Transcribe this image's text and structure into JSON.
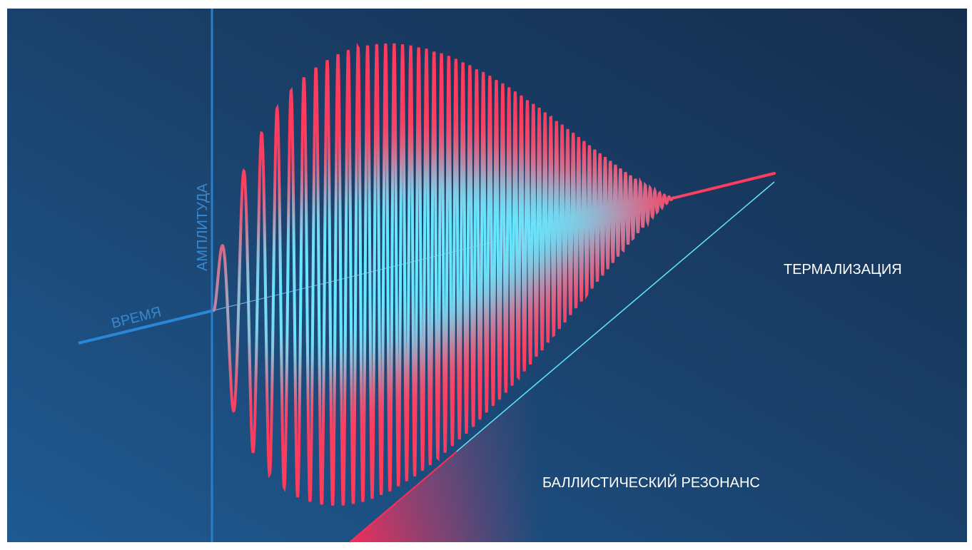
{
  "labels": {
    "amplitude": "АМПЛИТУДА",
    "time": "ВРЕМЯ",
    "thermalization": "ТЕРМАЛИЗАЦИЯ",
    "ballistic_resonance": "БАЛЛИСТИЧЕСКИЙ РЕЗОНАНС"
  }
}
